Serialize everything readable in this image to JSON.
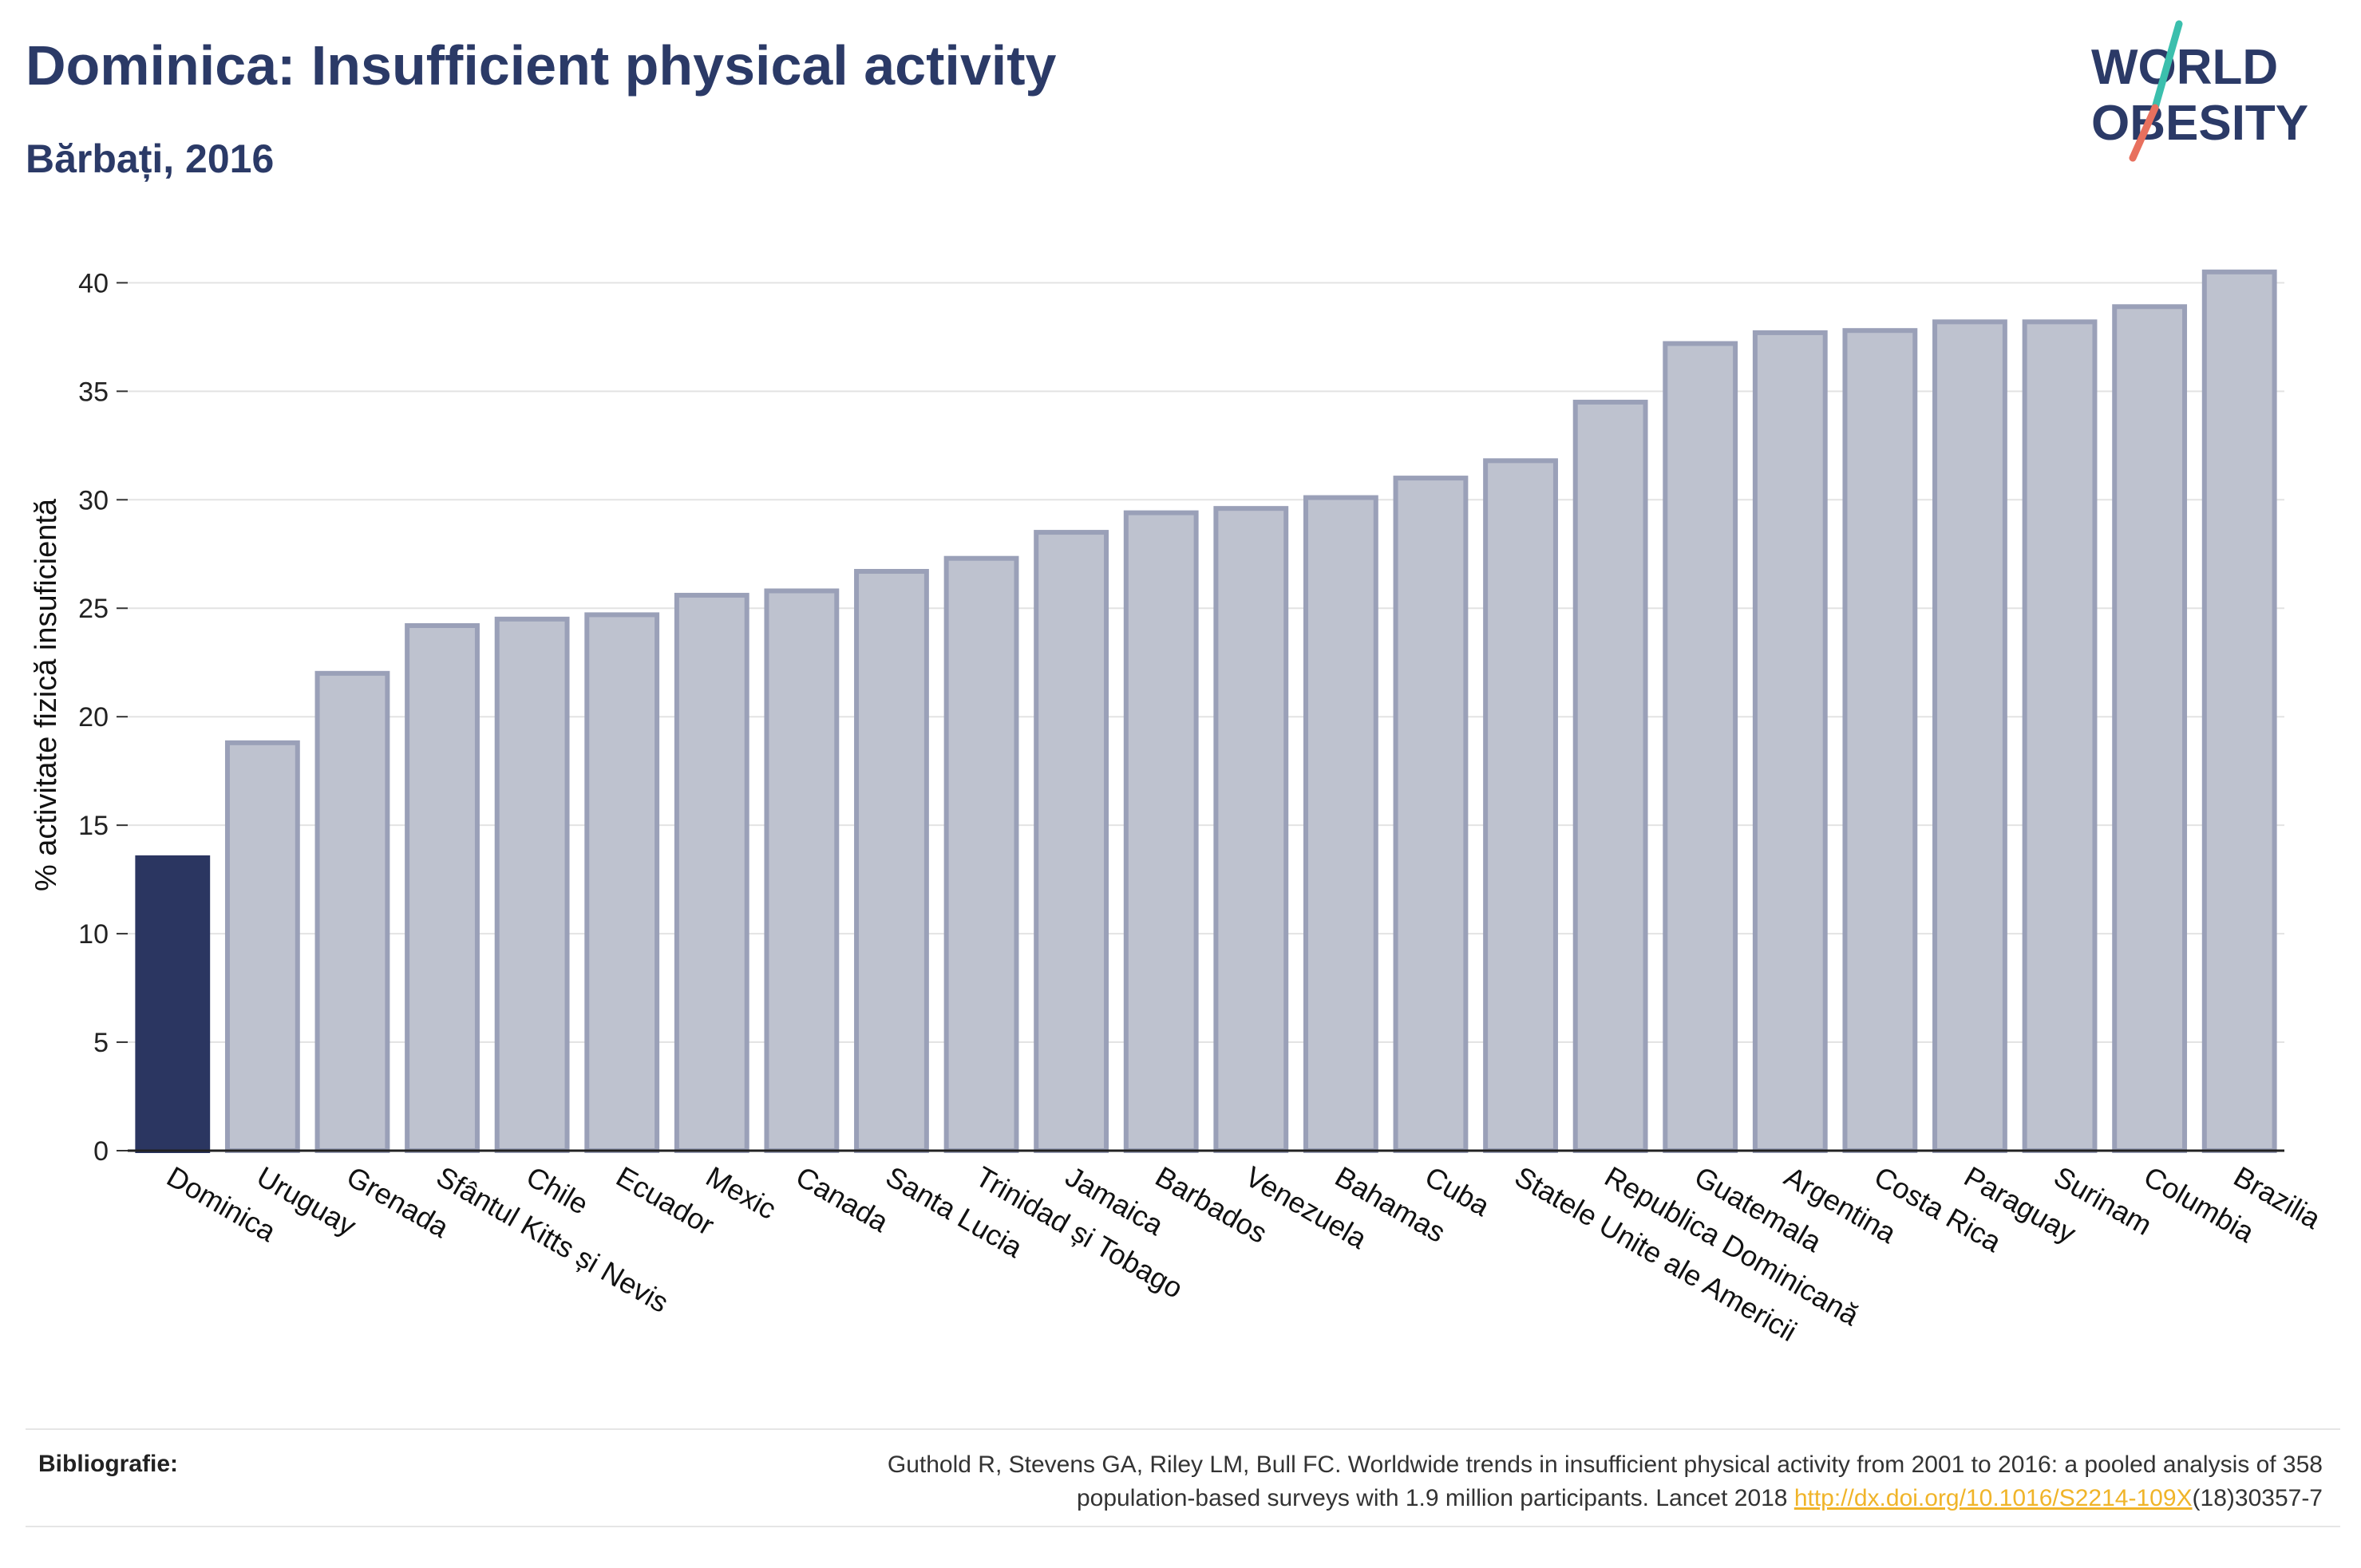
{
  "header": {
    "title": "Dominica: Insufficient physical activity",
    "subtitle": "Bărbați, 2016"
  },
  "logo": {
    "line1": "WORLD",
    "line2": "OBESITY",
    "text_color": "#2b3a67",
    "slash_colors": [
      "#3bbfad",
      "#e8705e"
    ]
  },
  "chart_data": {
    "type": "bar",
    "ylabel": "% activitate fizică insuficientă",
    "xlabel": "",
    "ylim": [
      0,
      42
    ],
    "yticks": [
      0,
      5,
      10,
      15,
      20,
      25,
      30,
      35,
      40
    ],
    "grid": true,
    "highlight_color": "#2b3661",
    "bar_color": "#bec2cf",
    "bar_border_color": "#9aa0b8",
    "categories": [
      "Dominica",
      "Uruguay",
      "Grenada",
      "Sfântul Kitts și Nevis",
      "Chile",
      "Ecuador",
      "Mexic",
      "Canada",
      "Santa Lucia",
      "Trinidad și Tobago",
      "Jamaica",
      "Barbados",
      "Venezuela",
      "Bahamas",
      "Cuba",
      "Statele Unite ale Americii",
      "Republica Dominicană",
      "Guatemala",
      "Argentina",
      "Costa Rica",
      "Paraguay",
      "Surinam",
      "Columbia",
      "Brazilia"
    ],
    "values": [
      13.5,
      18.8,
      22.0,
      24.2,
      24.5,
      24.7,
      25.6,
      25.8,
      26.7,
      27.3,
      28.5,
      29.4,
      29.6,
      30.1,
      31.0,
      31.8,
      34.5,
      37.2,
      37.7,
      37.8,
      38.2,
      38.2,
      38.9,
      40.5
    ],
    "highlight": "Dominica"
  },
  "footer": {
    "label": "Bibliografie:",
    "citation_line1": "Guthold R, Stevens GA, Riley LM, Bull FC. Worldwide trends in insufficient physical activity from 2001 to 2016: a pooled analysis of 358",
    "citation_line2_prefix": "population-based surveys with 1.9 million participants. Lancet 2018 ",
    "citation_link": "http://dx.doi.org/10.1016/S2214-109X",
    "citation_suffix": "(18)30357-7"
  }
}
